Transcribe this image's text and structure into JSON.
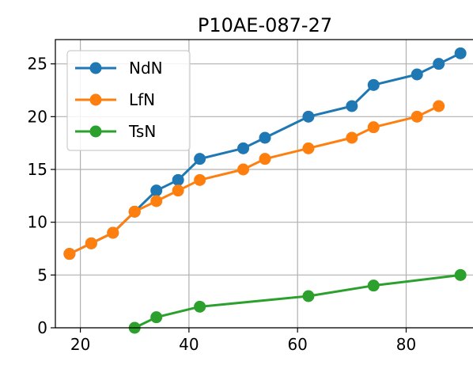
{
  "chart_data": {
    "type": "line",
    "title": "P10AE-087-27",
    "xlabel": "",
    "ylabel": "",
    "xlim": [
      15.4,
      92.6
    ],
    "ylim": [
      0,
      27.3
    ],
    "xticks": [
      20,
      40,
      60,
      80
    ],
    "yticks": [
      0,
      5,
      10,
      15,
      20,
      25
    ],
    "grid": true,
    "legend": "upper-left",
    "series": [
      {
        "name": "NdN",
        "color": "#1f77b4",
        "x": [
          18,
          22,
          26,
          30,
          34,
          38,
          42,
          50,
          54,
          62,
          70,
          74,
          82,
          86,
          90
        ],
        "y": [
          7,
          8,
          9,
          11,
          13,
          14,
          16,
          17,
          18,
          20,
          21,
          23,
          24,
          25,
          26
        ]
      },
      {
        "name": "LfN",
        "color": "#ff7f0e",
        "x": [
          18,
          22,
          26,
          30,
          34,
          38,
          42,
          50,
          54,
          62,
          70,
          74,
          82,
          86
        ],
        "y": [
          7,
          8,
          9,
          11,
          12,
          13,
          14,
          15,
          16,
          17,
          18,
          19,
          20,
          21
        ]
      },
      {
        "name": "TsN",
        "color": "#2ca02c",
        "x": [
          30,
          34,
          42,
          62,
          74,
          90
        ],
        "y": [
          0,
          1,
          2,
          3,
          4,
          5
        ]
      }
    ]
  }
}
